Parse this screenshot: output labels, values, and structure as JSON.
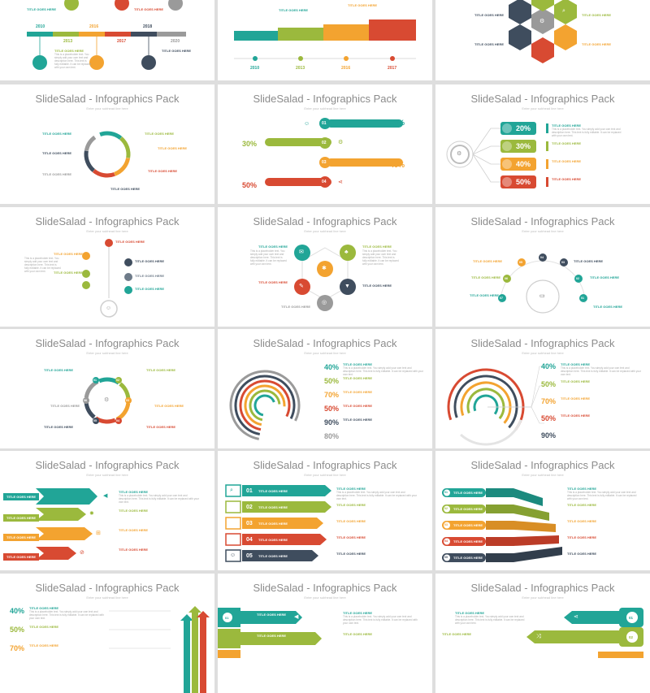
{
  "deck": {
    "title": "SlideSalad - Infographics Pack",
    "subtitle": "Enter your subhead line here",
    "item_title": "TITLE GOES HERE",
    "item_text": "This is a placeholder text. You simply add your own text and description here. This text is fully editable. It can be replaced with your own text."
  },
  "colors": {
    "teal": "#21a597",
    "green": "#9bb93d",
    "orange": "#f3a330",
    "red": "#d84a32",
    "navy": "#3f4d5e",
    "gray": "#c9c9c9"
  },
  "timeline": {
    "years": [
      "2010",
      "2013",
      "2016",
      "2017",
      "2018",
      "2020"
    ]
  },
  "timeline_b": {
    "years": [
      "2010",
      "2013",
      "2016",
      "2017"
    ]
  },
  "percent_labels": {
    "list_a": [
      "20%",
      "30%",
      "40%",
      "50%"
    ],
    "list_b": [
      "20%",
      "30%",
      "40%",
      "50%"
    ],
    "rings_a": [
      "40%",
      "50%",
      "70%",
      "50%",
      "90%",
      "80%"
    ],
    "rings_b": [
      "40%",
      "50%",
      "70%",
      "50%",
      "90%"
    ],
    "bars_vert": [
      "40%",
      "50%",
      "70%"
    ]
  },
  "numbers": {
    "steps4": [
      "01",
      "02",
      "03",
      "04"
    ],
    "steps5": [
      "01",
      "02",
      "03",
      "04",
      "05"
    ],
    "steps8": [
      "01",
      "02",
      "03",
      "04",
      "05",
      "06"
    ],
    "arc7": [
      "01",
      "02",
      "03",
      "04",
      "05",
      "06",
      "07"
    ],
    "ribbon2": [
      "01",
      "02"
    ]
  },
  "icons": {
    "pen": "pen-icon",
    "chart": "chart-icon",
    "money": "dollar-icon",
    "share": "share-icon",
    "gear": "gear-icon",
    "search": "search-icon",
    "user": "user-icon",
    "monitor": "monitor-icon",
    "megaphone": "megaphone-icon",
    "cart": "cart-icon",
    "trophy": "trophy-icon"
  }
}
